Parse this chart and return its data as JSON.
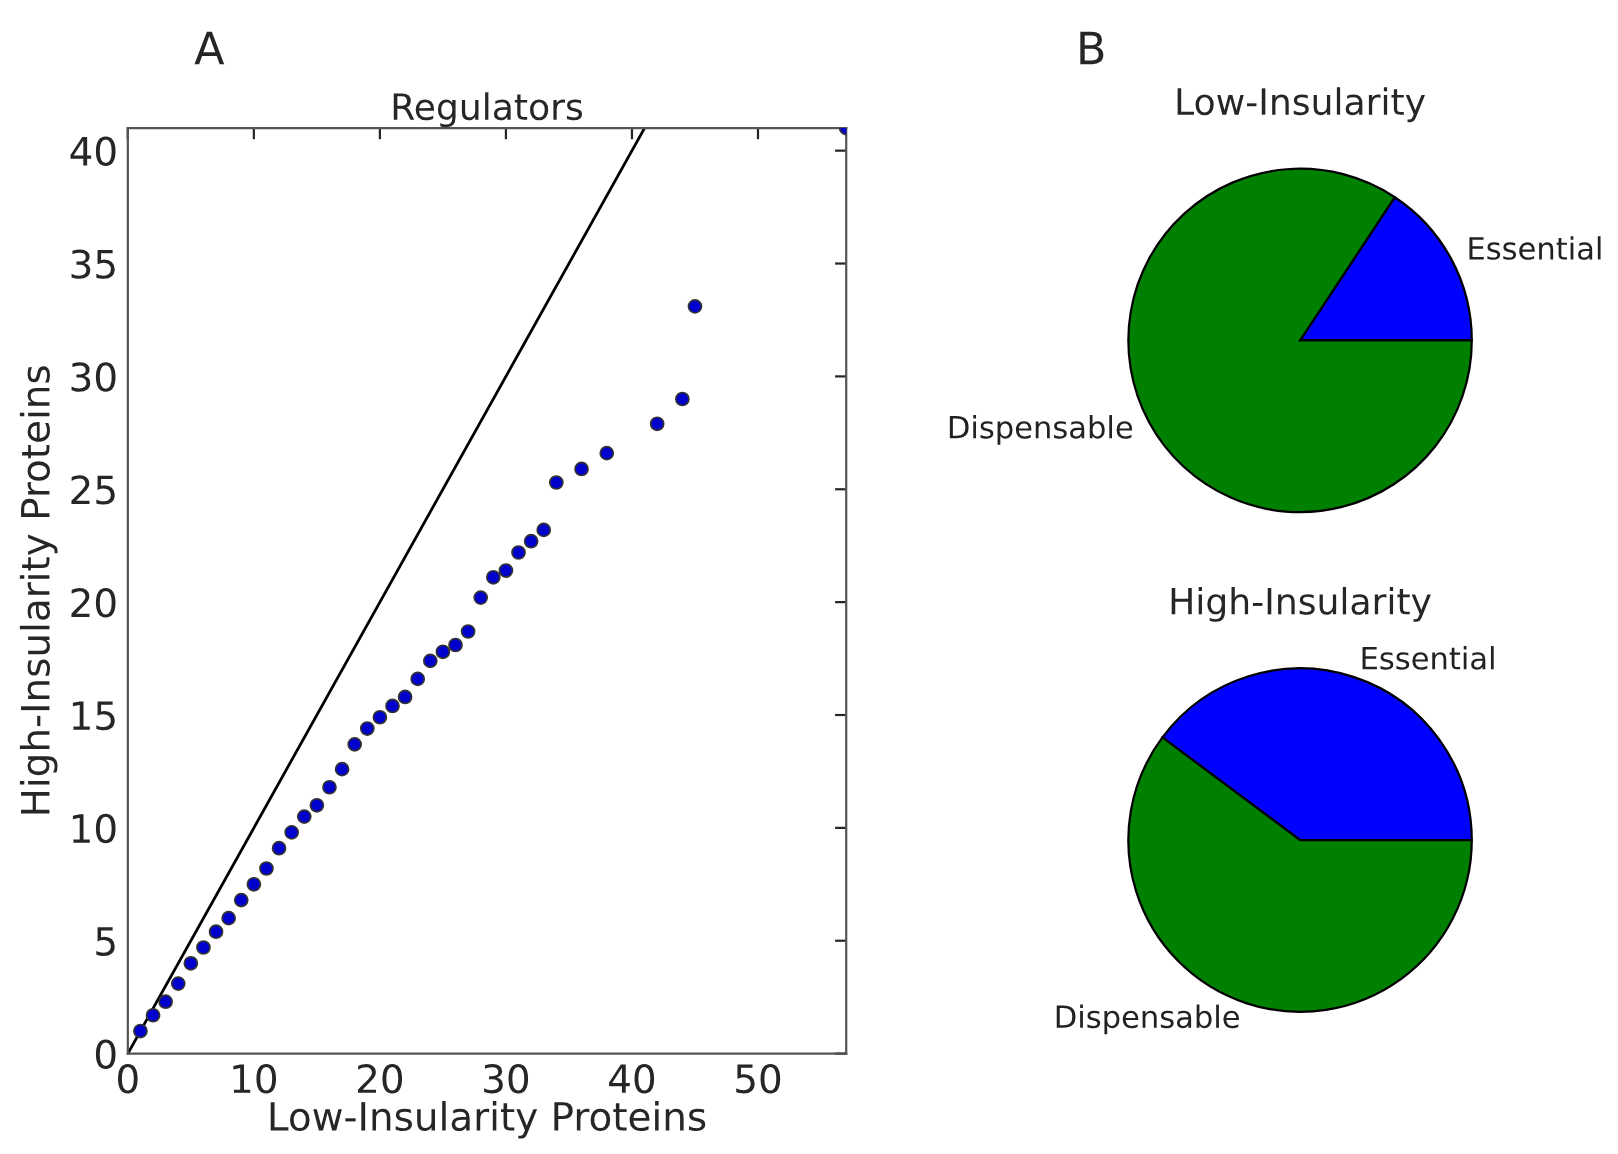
{
  "chart_data": [
    {
      "type": "scatter",
      "title": "Regulators",
      "xlabel": "Low-Insularity Proteins",
      "ylabel": "High-Insularity Proteins",
      "annotations": [
        "A"
      ],
      "xlim": [
        0,
        57
      ],
      "ylim": [
        0,
        41
      ],
      "xticks": [
        0,
        10,
        20,
        30,
        40,
        50
      ],
      "yticks": [
        0,
        5,
        10,
        15,
        20,
        25,
        30,
        35,
        40
      ],
      "grid": false,
      "series": [
        {
          "type": "line",
          "marker": "none",
          "color": "#000000",
          "x": [
            0,
            41
          ],
          "values": [
            0,
            41
          ]
        },
        {
          "type": "scatter",
          "marker": "circle",
          "color": "#0000cc",
          "x": [
            1,
            2,
            3,
            4,
            5,
            6,
            7,
            8,
            9,
            10,
            11,
            12,
            13,
            14,
            15,
            16,
            17,
            18,
            19,
            20,
            21,
            22,
            23,
            24,
            25,
            26,
            27,
            28,
            29,
            30,
            31,
            32,
            33,
            34,
            36,
            38,
            42,
            44,
            45,
            57
          ],
          "values": [
            1.0,
            1.7,
            2.3,
            3.1,
            4.0,
            4.7,
            5.4,
            6.0,
            6.8,
            7.5,
            8.2,
            9.1,
            9.8,
            10.5,
            11.0,
            11.8,
            12.6,
            13.7,
            14.4,
            14.9,
            15.4,
            15.8,
            16.6,
            17.4,
            17.8,
            18.1,
            18.7,
            20.2,
            21.1,
            21.4,
            22.2,
            22.7,
            23.2,
            25.3,
            25.9,
            26.6,
            27.9,
            29.0,
            33.1,
            41
          ]
        }
      ]
    },
    {
      "type": "pie",
      "title": "Low-Insularity",
      "annotations": [
        "B"
      ],
      "categories": [
        "Essential",
        "Dispensable"
      ],
      "values": [
        15.7,
        84.3
      ],
      "colors": [
        "#0000ff",
        "#008000"
      ]
    },
    {
      "type": "pie",
      "title": "High-Insularity",
      "categories": [
        "Essential",
        "Dispensable"
      ],
      "values": [
        39.8,
        60.2
      ],
      "colors": [
        "#0000ff",
        "#008000"
      ]
    }
  ]
}
